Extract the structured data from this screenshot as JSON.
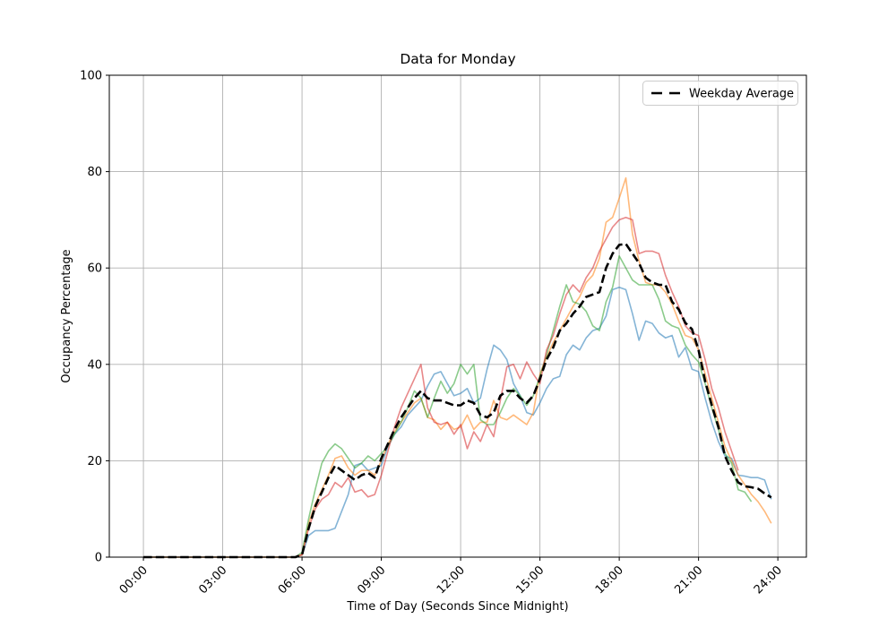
{
  "figure": {
    "background": "#ffffff"
  },
  "chart_data": {
    "type": "line",
    "title": "Data for Monday",
    "xlabel": "Time of Day (Seconds Since Midnight)",
    "ylabel": "Occupancy Percentage",
    "grid": true,
    "x_tick_labels": [
      "00:00",
      "03:00",
      "06:00",
      "09:00",
      "12:00",
      "15:00",
      "18:00",
      "21:00",
      "24:00"
    ],
    "x_tick_hours": [
      0,
      3,
      6,
      9,
      12,
      15,
      18,
      21,
      24
    ],
    "y_ticks": [
      0,
      20,
      40,
      60,
      80,
      100
    ],
    "ylim": [
      0,
      100
    ],
    "xlim_hours": [
      -1.29,
      25.08
    ],
    "legend": {
      "label": "Weekday Average",
      "position": "upper right"
    },
    "start_hour": 0,
    "sample_interval_hours": 0.25,
    "axis_colors": {
      "spine": "#000000",
      "grid": "#b0b0b0",
      "tick": "#000000"
    },
    "series": [
      {
        "name": "monday-trace-1",
        "color": "#1f77b4",
        "opacity": 0.55,
        "width": 1.6,
        "dash": null,
        "values": [
          0,
          0,
          0,
          0,
          0,
          0,
          0,
          0,
          0,
          0,
          0,
          0,
          0,
          0,
          0,
          0,
          0,
          0,
          0,
          0,
          0,
          0,
          0,
          0,
          0.5,
          4.5,
          5.5,
          5.5,
          5.5,
          6,
          9.5,
          13,
          19,
          19.5,
          18,
          18.5,
          19,
          23,
          25.5,
          27,
          29.5,
          31,
          32.5,
          35.5,
          38,
          38.5,
          36,
          33.5,
          34,
          35,
          32,
          33,
          39,
          44,
          43,
          41,
          36,
          33.5,
          30,
          29.5,
          32,
          35,
          37,
          37.5,
          42,
          44,
          43,
          45.5,
          47,
          47.5,
          50,
          55.5,
          56,
          55.5,
          50.5,
          45,
          49,
          48.5,
          46.5,
          45.5,
          46,
          41.5,
          43.5,
          39,
          38.5,
          33,
          28,
          24,
          21,
          20.5,
          17,
          16.8,
          16.5,
          16.5,
          16,
          12
        ]
      },
      {
        "name": "monday-trace-2",
        "color": "#ff7f0e",
        "opacity": 0.55,
        "width": 1.6,
        "dash": null,
        "values": [
          0,
          0,
          0,
          0,
          0,
          0,
          0,
          0,
          0,
          0,
          0,
          0,
          0,
          0,
          0,
          0,
          0,
          0,
          0,
          0,
          0,
          0,
          0,
          0,
          0.5,
          7,
          11,
          14,
          17,
          20.5,
          21,
          18.5,
          17,
          18,
          18,
          17,
          20,
          23.5,
          26,
          28,
          30,
          32,
          33,
          29,
          28.5,
          26.5,
          28,
          26.5,
          27,
          29.5,
          26.5,
          28,
          28,
          32.5,
          29,
          28.5,
          29.5,
          28.5,
          27.5,
          30,
          38,
          41.5,
          44.5,
          47,
          49.5,
          52,
          54,
          57,
          58.5,
          62,
          69.5,
          70.5,
          74.5,
          78.7,
          67,
          61.5,
          57,
          56.5,
          56.5,
          55,
          52.5,
          49,
          46,
          45.5,
          43,
          38,
          33,
          28,
          23,
          20,
          17,
          15,
          13,
          11.5,
          9.5,
          7
        ]
      },
      {
        "name": "monday-trace-3",
        "color": "#2ca02c",
        "opacity": 0.55,
        "width": 1.6,
        "dash": null,
        "values": [
          0,
          0,
          0,
          0,
          0,
          0,
          0,
          0,
          0,
          0,
          0,
          0,
          0,
          0,
          0,
          0,
          0,
          0,
          0,
          0,
          0,
          0,
          0,
          0,
          1,
          8,
          14,
          19.5,
          22,
          23.5,
          22.5,
          20.5,
          18.5,
          19.5,
          21,
          20,
          21.5,
          23,
          25.5,
          28,
          31,
          34.5,
          33,
          29,
          33,
          36.5,
          34,
          36,
          40,
          38,
          40,
          28.5,
          27.5,
          27.5,
          30,
          33,
          35,
          33.5,
          31.5,
          33.5,
          37.5,
          42,
          47,
          52,
          56.5,
          53,
          52.5,
          51,
          48,
          47,
          53,
          56,
          62.5,
          60,
          57.5,
          56.5,
          56.5,
          56.5,
          53.5,
          49,
          48,
          47.5,
          44,
          42,
          40.5,
          36,
          31,
          26.5,
          21.5,
          19.5,
          14,
          13.5,
          11.5,
          null,
          null,
          null
        ]
      },
      {
        "name": "monday-trace-4",
        "color": "#d62728",
        "opacity": 0.55,
        "width": 1.6,
        "dash": null,
        "values": [
          0,
          0,
          0,
          0,
          0,
          0,
          0,
          0,
          0,
          0,
          0,
          0,
          0,
          0,
          0,
          0,
          0,
          0,
          0,
          0,
          0,
          0,
          0,
          0,
          0.5,
          6,
          10,
          12,
          13,
          15.5,
          14.5,
          16.5,
          13.5,
          14,
          12.5,
          13,
          17,
          22,
          27,
          31,
          34,
          37,
          40,
          31,
          28,
          27.5,
          28,
          25.5,
          27.5,
          22.5,
          26,
          24,
          27.5,
          25,
          32.5,
          39.5,
          40,
          37,
          40.5,
          38,
          36,
          43,
          46,
          50.5,
          54.5,
          56.5,
          55,
          58,
          60,
          63.5,
          66,
          68.5,
          70,
          70.5,
          70,
          63,
          63.5,
          63.5,
          63,
          58.5,
          55,
          52,
          48,
          46.5,
          46,
          41,
          35,
          31,
          26,
          22,
          18,
          null,
          null,
          null,
          null,
          null
        ]
      },
      {
        "name": "weekday-average",
        "color": "#000000",
        "opacity": 1,
        "width": 2.6,
        "dash": "9.5 4.2",
        "values": [
          0,
          0,
          0,
          0,
          0,
          0,
          0,
          0,
          0,
          0,
          0,
          0,
          0,
          0,
          0,
          0,
          0,
          0,
          0,
          0,
          0,
          0,
          0,
          0,
          0.5,
          6,
          10.5,
          13.5,
          16.5,
          19,
          18,
          17,
          16,
          17,
          17.5,
          16.5,
          20.5,
          23.5,
          26.5,
          29,
          31,
          33,
          34.5,
          33,
          32.5,
          32.5,
          32,
          31.5,
          31.5,
          32.5,
          32,
          29.5,
          29,
          30,
          33.5,
          34.5,
          34.5,
          33,
          32,
          33.5,
          37,
          41,
          43.5,
          47,
          48.5,
          50.5,
          52,
          54,
          54.5,
          55,
          60,
          63,
          64.8,
          65,
          63,
          61,
          58,
          57,
          56.5,
          56.5,
          53,
          51.4,
          48.6,
          47.3,
          43,
          36.5,
          31.5,
          27,
          21,
          18,
          15.5,
          14.7,
          14.5,
          14.2,
          13.2,
          12.4
        ]
      }
    ]
  }
}
